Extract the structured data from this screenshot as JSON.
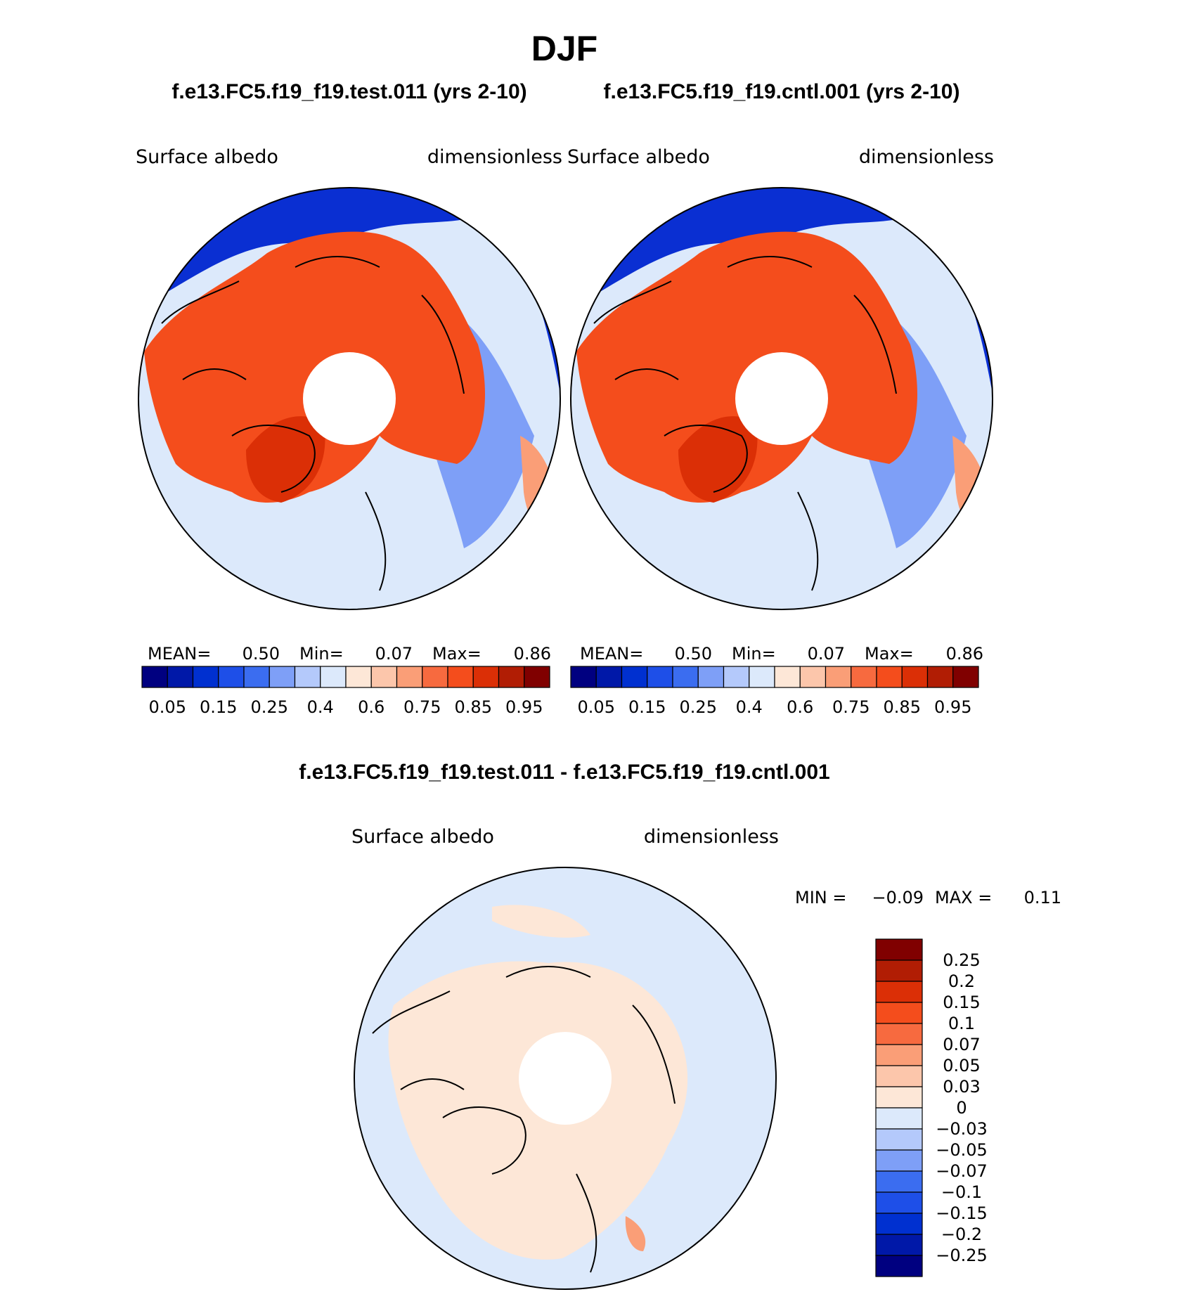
{
  "title": "DJF",
  "panels": [
    {
      "case": "f.e13.FC5.f19_f19.test.011 (yrs 2-10)",
      "variable": "Surface  albedo",
      "units": "dimensionless",
      "stats": {
        "mean_label": "MEAN=",
        "mean": "0.50",
        "min_label": "Min=",
        "min": "0.07",
        "max_label": "Max=",
        "max": "0.86"
      }
    },
    {
      "case": "f.e13.FC5.f19_f19.cntl.001 (yrs 2-10)",
      "variable": "Surface  albedo",
      "units": "dimensionless",
      "stats": {
        "mean_label": "MEAN=",
        "mean": "0.50",
        "min_label": "Min=",
        "min": "0.07",
        "max_label": "Max=",
        "max": "0.86"
      }
    }
  ],
  "diff_panel": {
    "title": "f.e13.FC5.f19_f19.test.011 - f.e13.FC5.f19_f19.cntl.001",
    "variable": "Surface  albedo",
    "units": "dimensionless",
    "stats": {
      "min_label": "MIN =",
      "min": "−0.09",
      "max_label": "MAX =",
      "max": "0.11"
    }
  },
  "chart_data": [
    {
      "type": "heatmap",
      "projection": "north polar stereographic",
      "title": "f.e13.FC5.f19_f19.test.011 (yrs 2-10)",
      "variable": "Surface albedo",
      "units": "dimensionless",
      "mean": 0.5,
      "min": 0.07,
      "max": 0.86,
      "colorbar": {
        "orientation": "horizontal",
        "levels": [
          0.05,
          0.1,
          0.15,
          0.2,
          0.25,
          0.3,
          0.4,
          0.5,
          0.6,
          0.7,
          0.75,
          0.8,
          0.85,
          0.9,
          0.95
        ],
        "tick_labels": [
          "0.05",
          "0.15",
          "0.25",
          "0.4",
          "0.6",
          "0.75",
          "0.85",
          "0.95"
        ],
        "colors": [
          "#000080",
          "#0018a8",
          "#0030d0",
          "#1e4fe8",
          "#3b6df0",
          "#7e9ff7",
          "#b4c9fb",
          "#dce9fb",
          "#fde7d7",
          "#fcc6ab",
          "#fa9e77",
          "#f76a3f",
          "#f44d1c",
          "#db2f06",
          "#b11d04",
          "#800000"
        ]
      }
    },
    {
      "type": "heatmap",
      "projection": "north polar stereographic",
      "title": "f.e13.FC5.f19_f19.cntl.001 (yrs 2-10)",
      "variable": "Surface albedo",
      "units": "dimensionless",
      "mean": 0.5,
      "min": 0.07,
      "max": 0.86,
      "colorbar": {
        "orientation": "horizontal",
        "levels": [
          0.05,
          0.1,
          0.15,
          0.2,
          0.25,
          0.3,
          0.4,
          0.5,
          0.6,
          0.7,
          0.75,
          0.8,
          0.85,
          0.9,
          0.95
        ],
        "tick_labels": [
          "0.05",
          "0.15",
          "0.25",
          "0.4",
          "0.6",
          "0.75",
          "0.85",
          "0.95"
        ],
        "colors": [
          "#000080",
          "#0018a8",
          "#0030d0",
          "#1e4fe8",
          "#3b6df0",
          "#7e9ff7",
          "#b4c9fb",
          "#dce9fb",
          "#fde7d7",
          "#fcc6ab",
          "#fa9e77",
          "#f76a3f",
          "#f44d1c",
          "#db2f06",
          "#b11d04",
          "#800000"
        ]
      }
    },
    {
      "type": "heatmap",
      "projection": "north polar stereographic",
      "title": "f.e13.FC5.f19_f19.test.011 - f.e13.FC5.f19_f19.cntl.001",
      "variable": "Surface albedo",
      "units": "dimensionless",
      "min": -0.09,
      "max": 0.11,
      "colorbar": {
        "orientation": "vertical",
        "tick_labels": [
          "0.25",
          "0.2",
          "0.15",
          "0.1",
          "0.07",
          "0.05",
          "0.03",
          "0",
          "−0.03",
          "−0.05",
          "−0.07",
          "−0.1",
          "−0.15",
          "−0.2",
          "−0.25"
        ],
        "colors": [
          "#800000",
          "#b11d04",
          "#db2f06",
          "#f44d1c",
          "#f76a3f",
          "#fa9e77",
          "#fcc6ab",
          "#fde7d7",
          "#dce9fb",
          "#b4c9fb",
          "#7e9ff7",
          "#3b6df0",
          "#1e4fe8",
          "#0030d0",
          "#0018a8",
          "#000080"
        ]
      }
    }
  ]
}
